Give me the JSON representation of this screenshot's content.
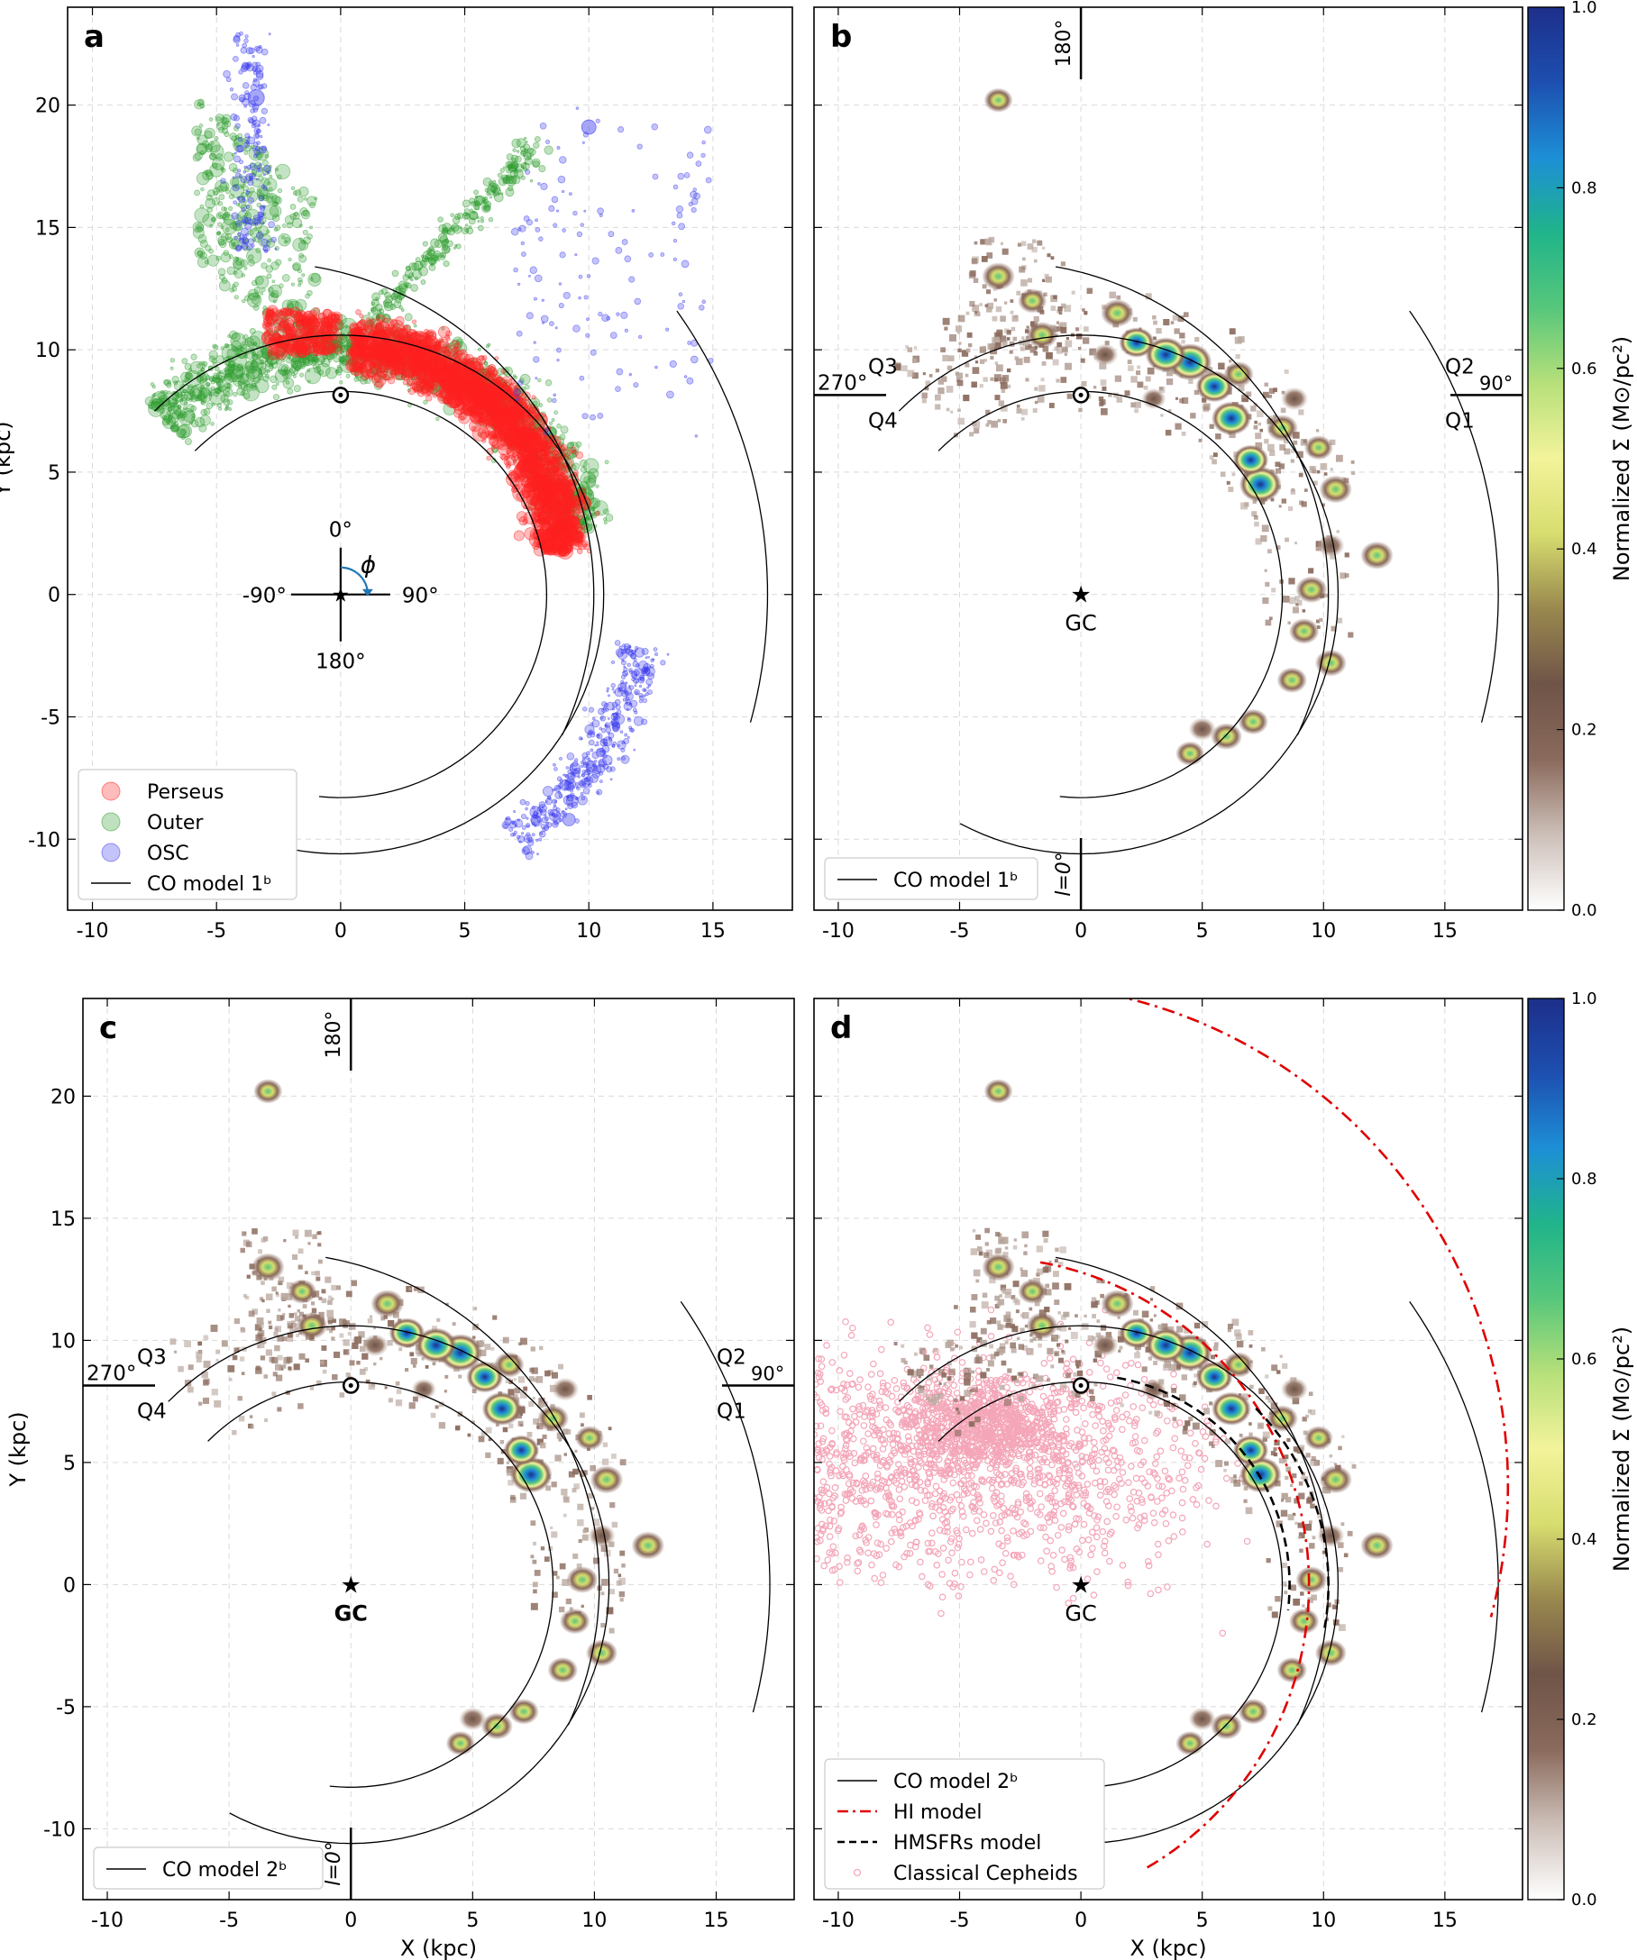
{
  "chart_data": {
    "type": "scatter",
    "xlabel": "X (kpc)",
    "ylabel": "Y (kpc)",
    "xlim": [
      -11,
      18.2
    ],
    "ylim": [
      -12.9,
      24
    ],
    "xticks": [
      -10,
      -5,
      0,
      5,
      10,
      15
    ],
    "yticks": [
      -10,
      -5,
      0,
      5,
      10,
      15,
      20
    ],
    "sun": [
      0,
      8.15
    ],
    "gc": [
      0,
      0
    ],
    "colorbar": {
      "label": "Normalized Σ (M⊙/pc²)",
      "ticks": [
        "0.0",
        "0.2",
        "0.4",
        "0.6",
        "0.8",
        "1.0"
      ],
      "colormap": [
        "#ffffff",
        "#cdbfb8",
        "#8a6a5c",
        "#6f5448",
        "#99884e",
        "#d7dd6f",
        "#f3f39a",
        "#b7e07a",
        "#57c77b",
        "#20b48a",
        "#1d8fd6",
        "#1d4fb0",
        "#1d2f8a"
      ]
    },
    "co_model_arcs": [
      {
        "cx": 0.0,
        "cy": 0.0,
        "r": 8.3,
        "deg_start": -45,
        "deg_end": 186
      },
      {
        "cx": 0.0,
        "cy": 0.0,
        "r": 10.6,
        "deg_start": -45,
        "deg_end": 208
      },
      {
        "cx": 0.0,
        "cy": 0.0,
        "r": 14.2,
        "deg_start": -45,
        "deg_end": 140
      }
    ],
    "outer_arm_arc": {
      "cx": -3.4,
      "cy": 0.0,
      "r": 13.6,
      "deg_start": 10,
      "deg_end": 115
    },
    "osc_arc": {
      "cx": -3.0,
      "cy": 0.0,
      "r": 20.2,
      "deg_start": 55,
      "deg_end": 105
    },
    "hi_model": [
      {
        "cx": -4.0,
        "cy": 0.0,
        "r": 13.4,
        "deg_start": 10,
        "deg_end": 150
      },
      {
        "cx": -3.0,
        "cy": 4.0,
        "r": 20.6,
        "deg_start": 12,
        "deg_end": 105
      }
    ],
    "hmsfr_model": [
      {
        "cx": 0.0,
        "cy": 0.0,
        "r": 10.2,
        "deg_start": 45,
        "deg_end": 100
      },
      {
        "cx": 0.0,
        "cy": 0.0,
        "r": 8.6,
        "deg_start": 10,
        "deg_end": 97
      }
    ],
    "panels": [
      {
        "letter": "a",
        "legend": [
          "Perseus",
          "Outer",
          "OSC",
          "CO model 1ᵇ"
        ],
        "angle_labels": {
          "top": "0°",
          "left": "-90°",
          "right": "90°",
          "bottom": "180°",
          "phi": "ϕ"
        },
        "series": [
          {
            "name": "Perseus",
            "color": "#ff2020"
          },
          {
            "name": "Outer",
            "color": "#2a9a2a"
          },
          {
            "name": "OSC",
            "color": "#3a3af0"
          }
        ]
      },
      {
        "letter": "b",
        "legend": [
          "CO model 1ᵇ"
        ],
        "quadrants": {
          "q1": "Q1",
          "q2": "Q2",
          "q3": "Q3",
          "q4": "Q4",
          "l90": "90°",
          "l270": "270°",
          "l180": "180°",
          "l0": "l=0°"
        },
        "gc_label": "GC"
      },
      {
        "letter": "c",
        "legend": [
          "CO model 2ᵇ"
        ],
        "quadrants": {
          "q1": "Q1",
          "q2": "Q2",
          "q3": "Q3",
          "q4": "Q4",
          "l90": "90°",
          "l270": "270°",
          "l180": "180°",
          "l0": "l=0°"
        },
        "gc_label": "GC"
      },
      {
        "letter": "d",
        "legend": [
          "CO model 2ᵇ",
          "HI model",
          "HMSFRs model",
          "Classical Cepheids"
        ],
        "gc_label": "GC",
        "series": [
          {
            "name": "CO model 2ᵇ",
            "color": "#000000"
          },
          {
            "name": "HI model",
            "color": "#e00000"
          },
          {
            "name": "HMSFRs model",
            "color": "#000000"
          },
          {
            "name": "Classical Cepheids",
            "color": "#f4a6b8"
          }
        ]
      }
    ],
    "density_blobs": [
      {
        "x": 4.5,
        "y": 9.5,
        "v": 1.0
      },
      {
        "x": 3.5,
        "y": 9.8,
        "v": 0.9
      },
      {
        "x": 7.4,
        "y": 4.5,
        "v": 0.95
      },
      {
        "x": 6.2,
        "y": 7.2,
        "v": 0.85
      },
      {
        "x": 2.3,
        "y": 10.3,
        "v": 0.7
      },
      {
        "x": 1.5,
        "y": 11.5,
        "v": 0.6
      },
      {
        "x": 5.5,
        "y": 8.5,
        "v": 0.75
      },
      {
        "x": 7.0,
        "y": 5.5,
        "v": 0.7
      },
      {
        "x": 8.3,
        "y": 6.8,
        "v": 0.55
      },
      {
        "x": 10.5,
        "y": 4.3,
        "v": 0.6
      },
      {
        "x": 12.2,
        "y": 1.6,
        "v": 0.6
      },
      {
        "x": 9.5,
        "y": 0.2,
        "v": 0.55
      },
      {
        "x": 9.2,
        "y": -1.5,
        "v": 0.5
      },
      {
        "x": 10.3,
        "y": -2.8,
        "v": 0.55
      },
      {
        "x": 8.7,
        "y": -3.5,
        "v": 0.5
      },
      {
        "x": 7.1,
        "y": -5.2,
        "v": 0.5
      },
      {
        "x": 6.0,
        "y": -5.8,
        "v": 0.55
      },
      {
        "x": 4.5,
        "y": -6.5,
        "v": 0.45
      },
      {
        "x": 5.0,
        "y": -5.5,
        "v": 0.4
      },
      {
        "x": -1.6,
        "y": 10.6,
        "v": 0.55
      },
      {
        "x": -2.0,
        "y": 12.0,
        "v": 0.45
      },
      {
        "x": -3.4,
        "y": 13.0,
        "v": 0.6
      },
      {
        "x": -3.4,
        "y": 20.2,
        "v": 0.45
      },
      {
        "x": 3.0,
        "y": 8.0,
        "v": 0.3
      },
      {
        "x": 6.5,
        "y": 9.0,
        "v": 0.5
      },
      {
        "x": 8.8,
        "y": 8.0,
        "v": 0.4
      },
      {
        "x": 9.8,
        "y": 6.0,
        "v": 0.45
      },
      {
        "x": 10.3,
        "y": 2.0,
        "v": 0.4
      },
      {
        "x": 1.0,
        "y": 9.8,
        "v": 0.35
      }
    ]
  }
}
